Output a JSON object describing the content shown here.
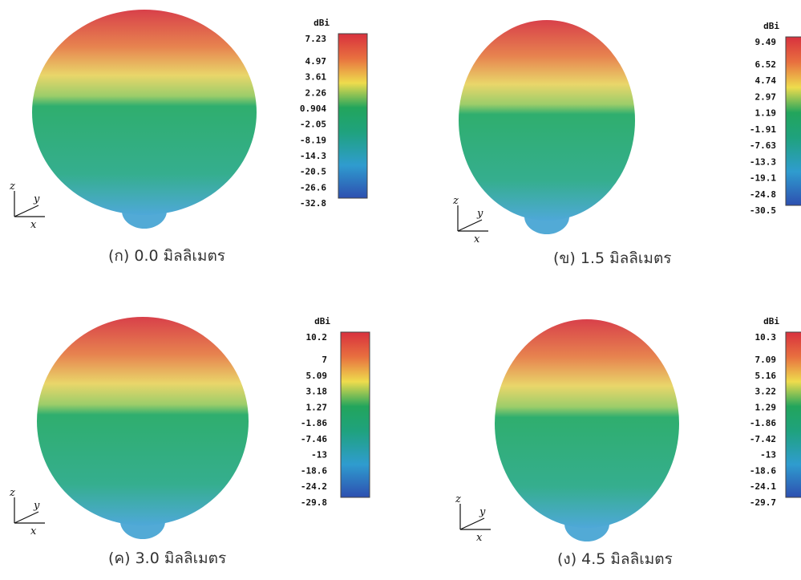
{
  "panels": [
    {
      "caption": "(ก) 0.0 มิลลิเมตร",
      "unit": "dBi",
      "axes": [
        "z",
        "y",
        "x"
      ],
      "scale": [
        "7.23",
        "4.97",
        "3.61",
        "2.26",
        "0.904",
        "-2.05",
        "-8.19",
        "-14.3",
        "-20.5",
        "-26.6",
        "-32.8"
      ]
    },
    {
      "caption": "(ข) 1.5 มิลลิเมตร",
      "unit": "dBi",
      "axes": [
        "z",
        "y",
        "x"
      ],
      "scale": [
        "9.49",
        "6.52",
        "4.74",
        "2.97",
        "1.19",
        "-1.91",
        "-7.63",
        "-13.3",
        "-19.1",
        "-24.8",
        "-30.5"
      ]
    },
    {
      "caption": "(ค) 3.0 มิลลิเมตร",
      "unit": "dBi",
      "axes": [
        "z",
        "y",
        "x"
      ],
      "scale": [
        "10.2",
        "7",
        "5.09",
        "3.18",
        "1.27",
        "-1.86",
        "-7.46",
        "-13",
        "-18.6",
        "-24.2",
        "-29.8"
      ]
    },
    {
      "caption": "(ง) 4.5 มิลลิเมตร",
      "unit": "dBi",
      "axes": [
        "z",
        "y",
        "x"
      ],
      "scale": [
        "10.3",
        "7.09",
        "5.16",
        "3.22",
        "1.29",
        "-1.86",
        "-7.42",
        "-13",
        "-18.6",
        "-24.1",
        "-29.7"
      ]
    }
  ]
}
